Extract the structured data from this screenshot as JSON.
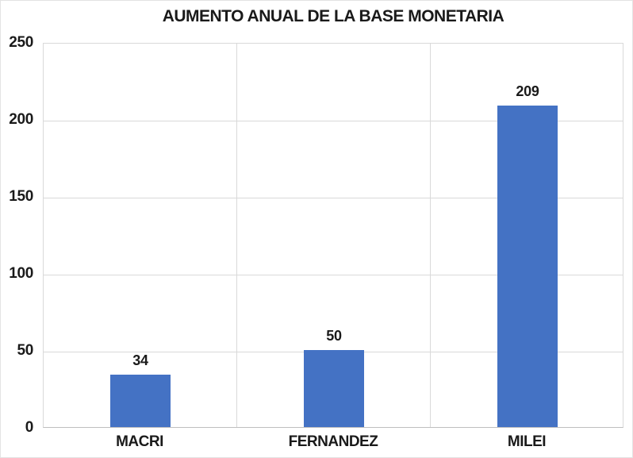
{
  "colors": {
    "bar_fill": "#4472C4",
    "gridline": "#D9D9D9",
    "axis_line": "#BFBFBF",
    "text": "#1A1A1A",
    "background": "#FFFFFF",
    "page_border": "#E3E3E3"
  },
  "chart_data": {
    "type": "bar",
    "title": "AUMENTO ANUAL DE LA BASE MONETARIA",
    "xlabel": "",
    "ylabel": "",
    "categories": [
      "MACRI",
      "FERNANDEZ",
      "MILEI"
    ],
    "values": [
      34,
      50,
      209
    ],
    "data_labels": [
      "34",
      "50",
      "209"
    ],
    "ylim": [
      0,
      250
    ],
    "yticks": [
      0,
      50,
      100,
      150,
      200,
      250
    ],
    "grid": "horizontal-50-step-plus-category-separators",
    "legend": "none"
  }
}
